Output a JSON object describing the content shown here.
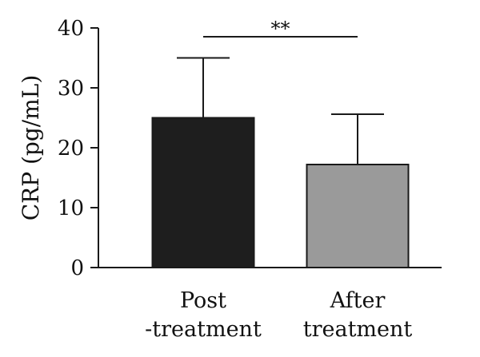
{
  "chart_data": {
    "type": "bar",
    "categories": [
      [
        "Post",
        "-treatment"
      ],
      [
        "After",
        "treatment"
      ]
    ],
    "values": [
      25,
      17.2
    ],
    "errors": [
      10,
      8.4
    ],
    "bar_colors": [
      "#1e1e1e",
      "#9a9a9a"
    ],
    "ylabel": "CRP (pg/mL)",
    "ylim": [
      0,
      40
    ],
    "yticks": [
      0,
      10,
      20,
      30,
      40
    ],
    "grid": false,
    "significance": {
      "between": [
        0,
        1
      ],
      "label": "**"
    }
  }
}
